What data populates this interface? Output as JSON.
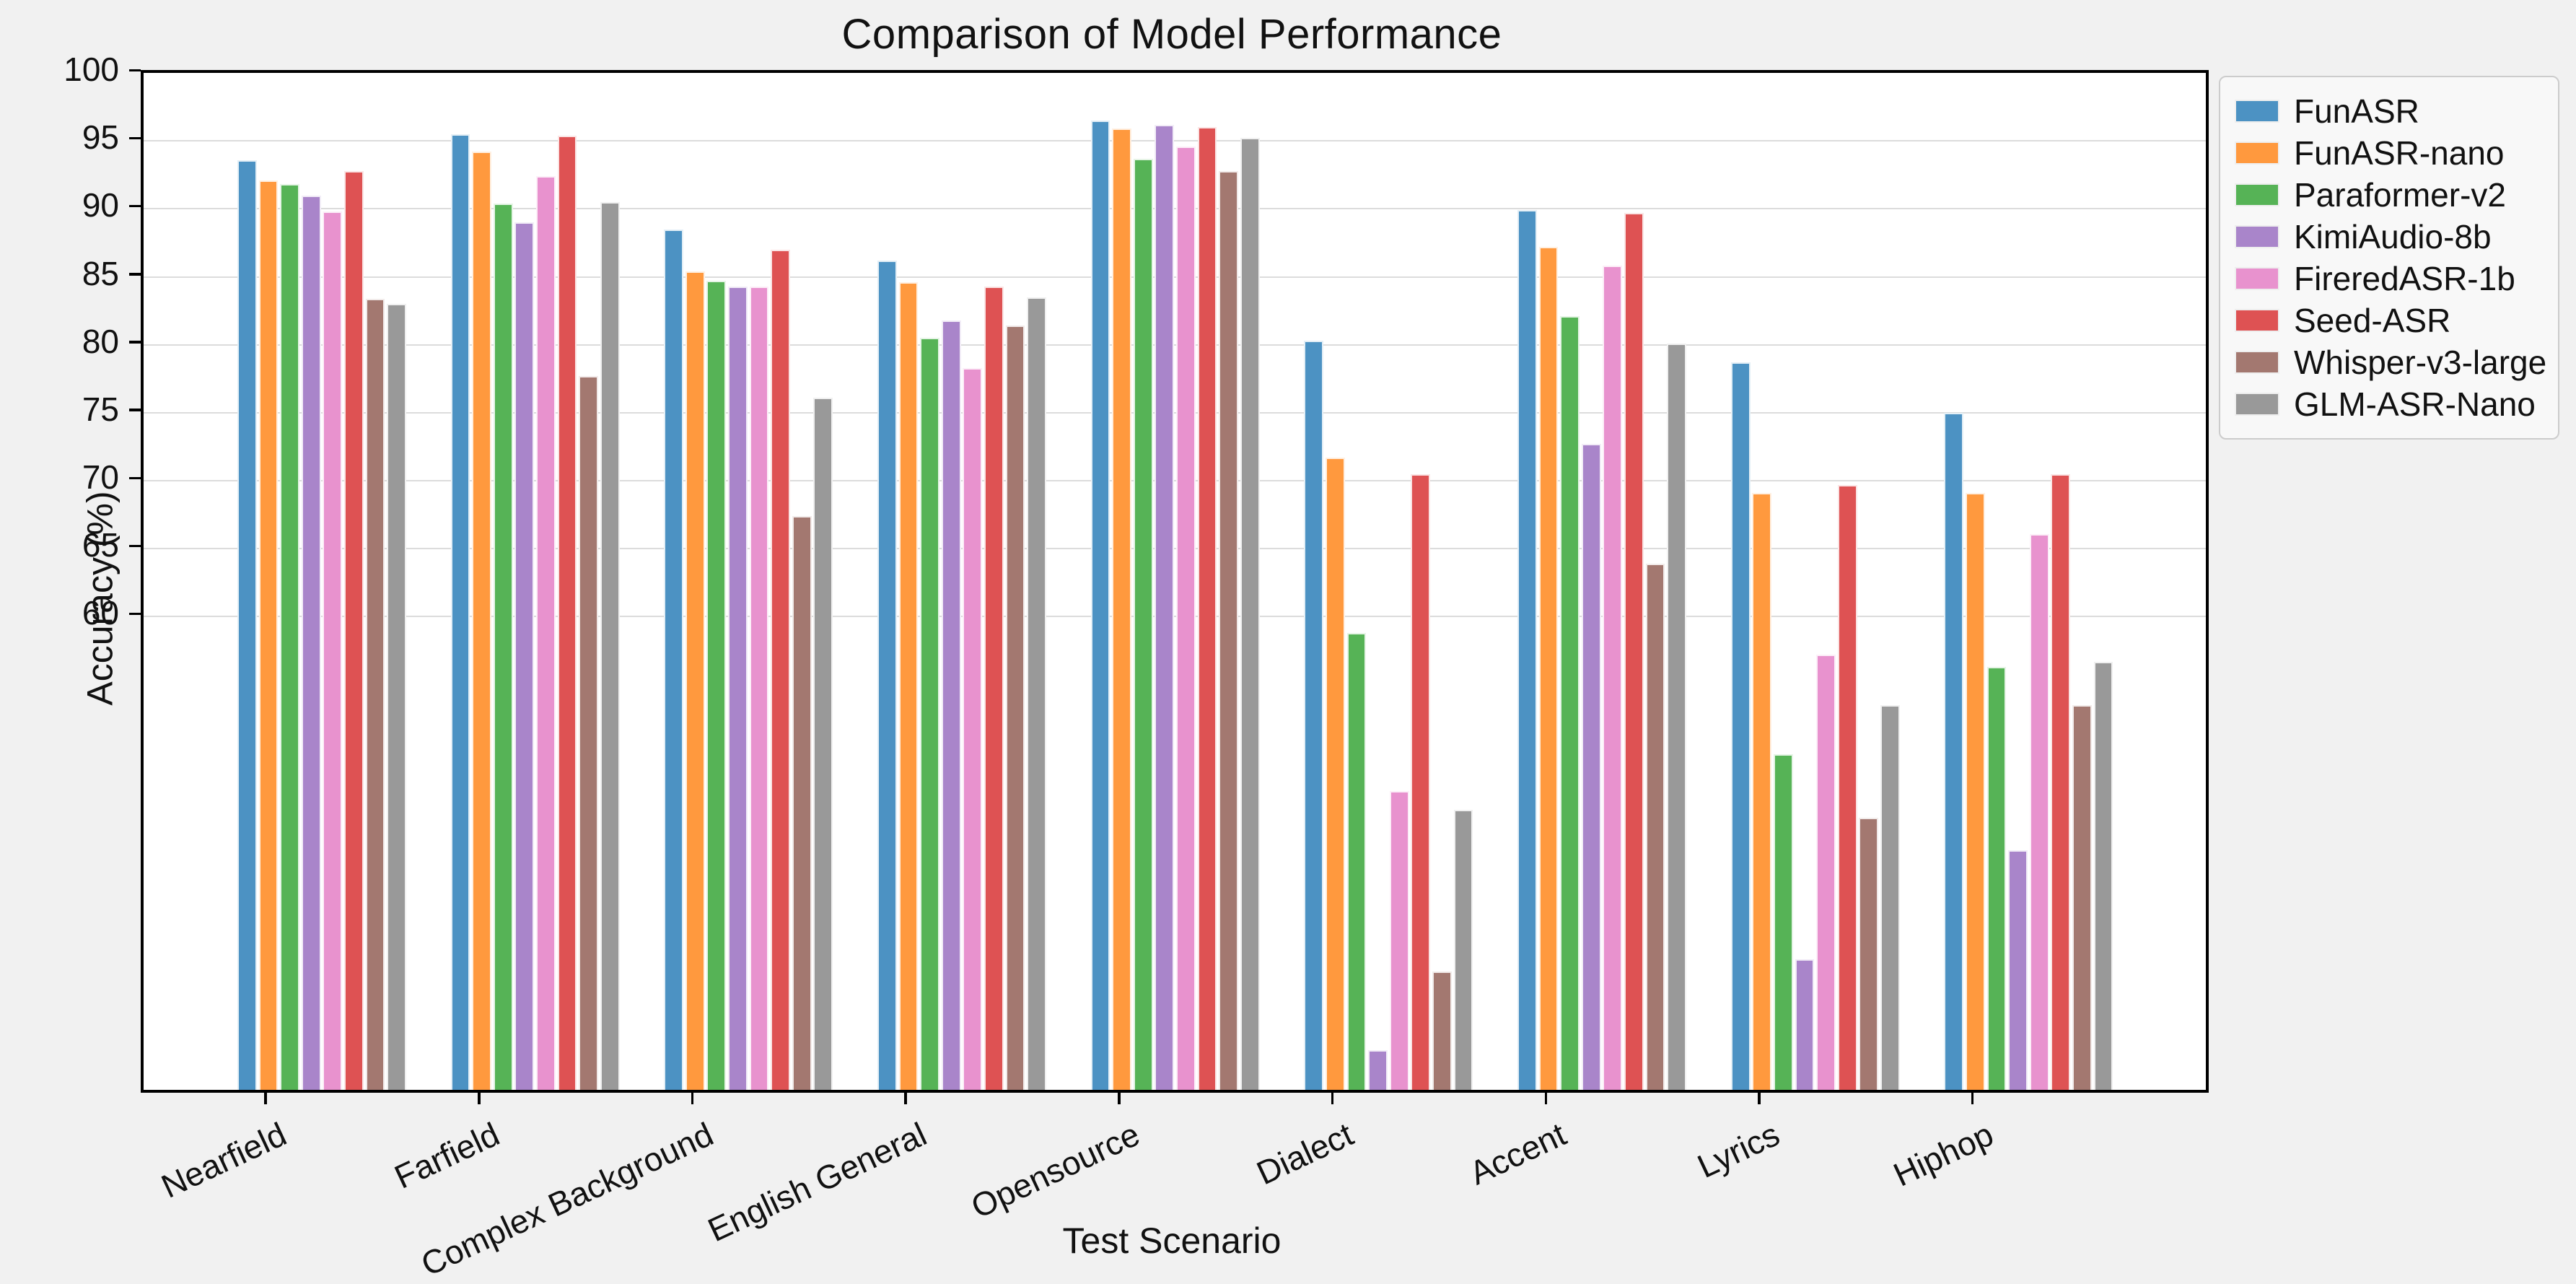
{
  "chart_data": {
    "type": "bar",
    "title": "Comparison of Model Performance",
    "xlabel": "Test Scenario",
    "ylabel": "Accuracy (%)",
    "ylim": [
      25.2,
      100
    ],
    "yticks": [
      60,
      65,
      70,
      75,
      80,
      85,
      90,
      95,
      100
    ],
    "grid": true,
    "legend_position": "upper right, outside axes",
    "categories": [
      "Nearfield",
      "Farfield",
      "Complex Background",
      "English General",
      "Opensource",
      "Dialect",
      "Accent",
      "Lyrics",
      "Hiphop"
    ],
    "series": [
      {
        "name": "FunASR",
        "color": "#4C92C3",
        "values": [
          93.6,
          95.5,
          88.5,
          86.2,
          96.5,
          80.3,
          89.9,
          78.7,
          75.0
        ]
      },
      {
        "name": "FunASR-nano",
        "color": "#FF993E",
        "values": [
          92.1,
          94.2,
          85.4,
          84.6,
          95.9,
          71.7,
          87.2,
          69.1,
          69.1
        ]
      },
      {
        "name": "Paraformer-v2",
        "color": "#56B356",
        "values": [
          91.8,
          90.4,
          84.7,
          80.5,
          93.7,
          58.8,
          82.1,
          49.9,
          56.3
        ]
      },
      {
        "name": "KimiAudio-8b",
        "color": "#A985CA",
        "values": [
          91.0,
          89.0,
          84.3,
          81.8,
          96.2,
          28.1,
          72.7,
          34.8,
          42.8
        ]
      },
      {
        "name": "FireredASR-1b",
        "color": "#E892CE",
        "values": [
          89.8,
          92.4,
          84.3,
          78.3,
          94.6,
          47.2,
          85.8,
          57.2,
          66.1
        ]
      },
      {
        "name": "Seed-ASR",
        "color": "#DE5253",
        "values": [
          92.8,
          95.4,
          87.0,
          84.3,
          96.0,
          70.5,
          89.7,
          69.7,
          70.5
        ]
      },
      {
        "name": "Whisper-v3-large",
        "color": "#A37870",
        "values": [
          83.4,
          77.7,
          67.4,
          81.4,
          92.8,
          33.9,
          63.9,
          45.2,
          53.5
        ]
      },
      {
        "name": "GLM-ASR-Nano",
        "color": "#999999",
        "values": [
          83.0,
          90.5,
          76.1,
          83.5,
          95.2,
          45.8,
          80.1,
          53.5,
          56.7
        ]
      }
    ]
  }
}
